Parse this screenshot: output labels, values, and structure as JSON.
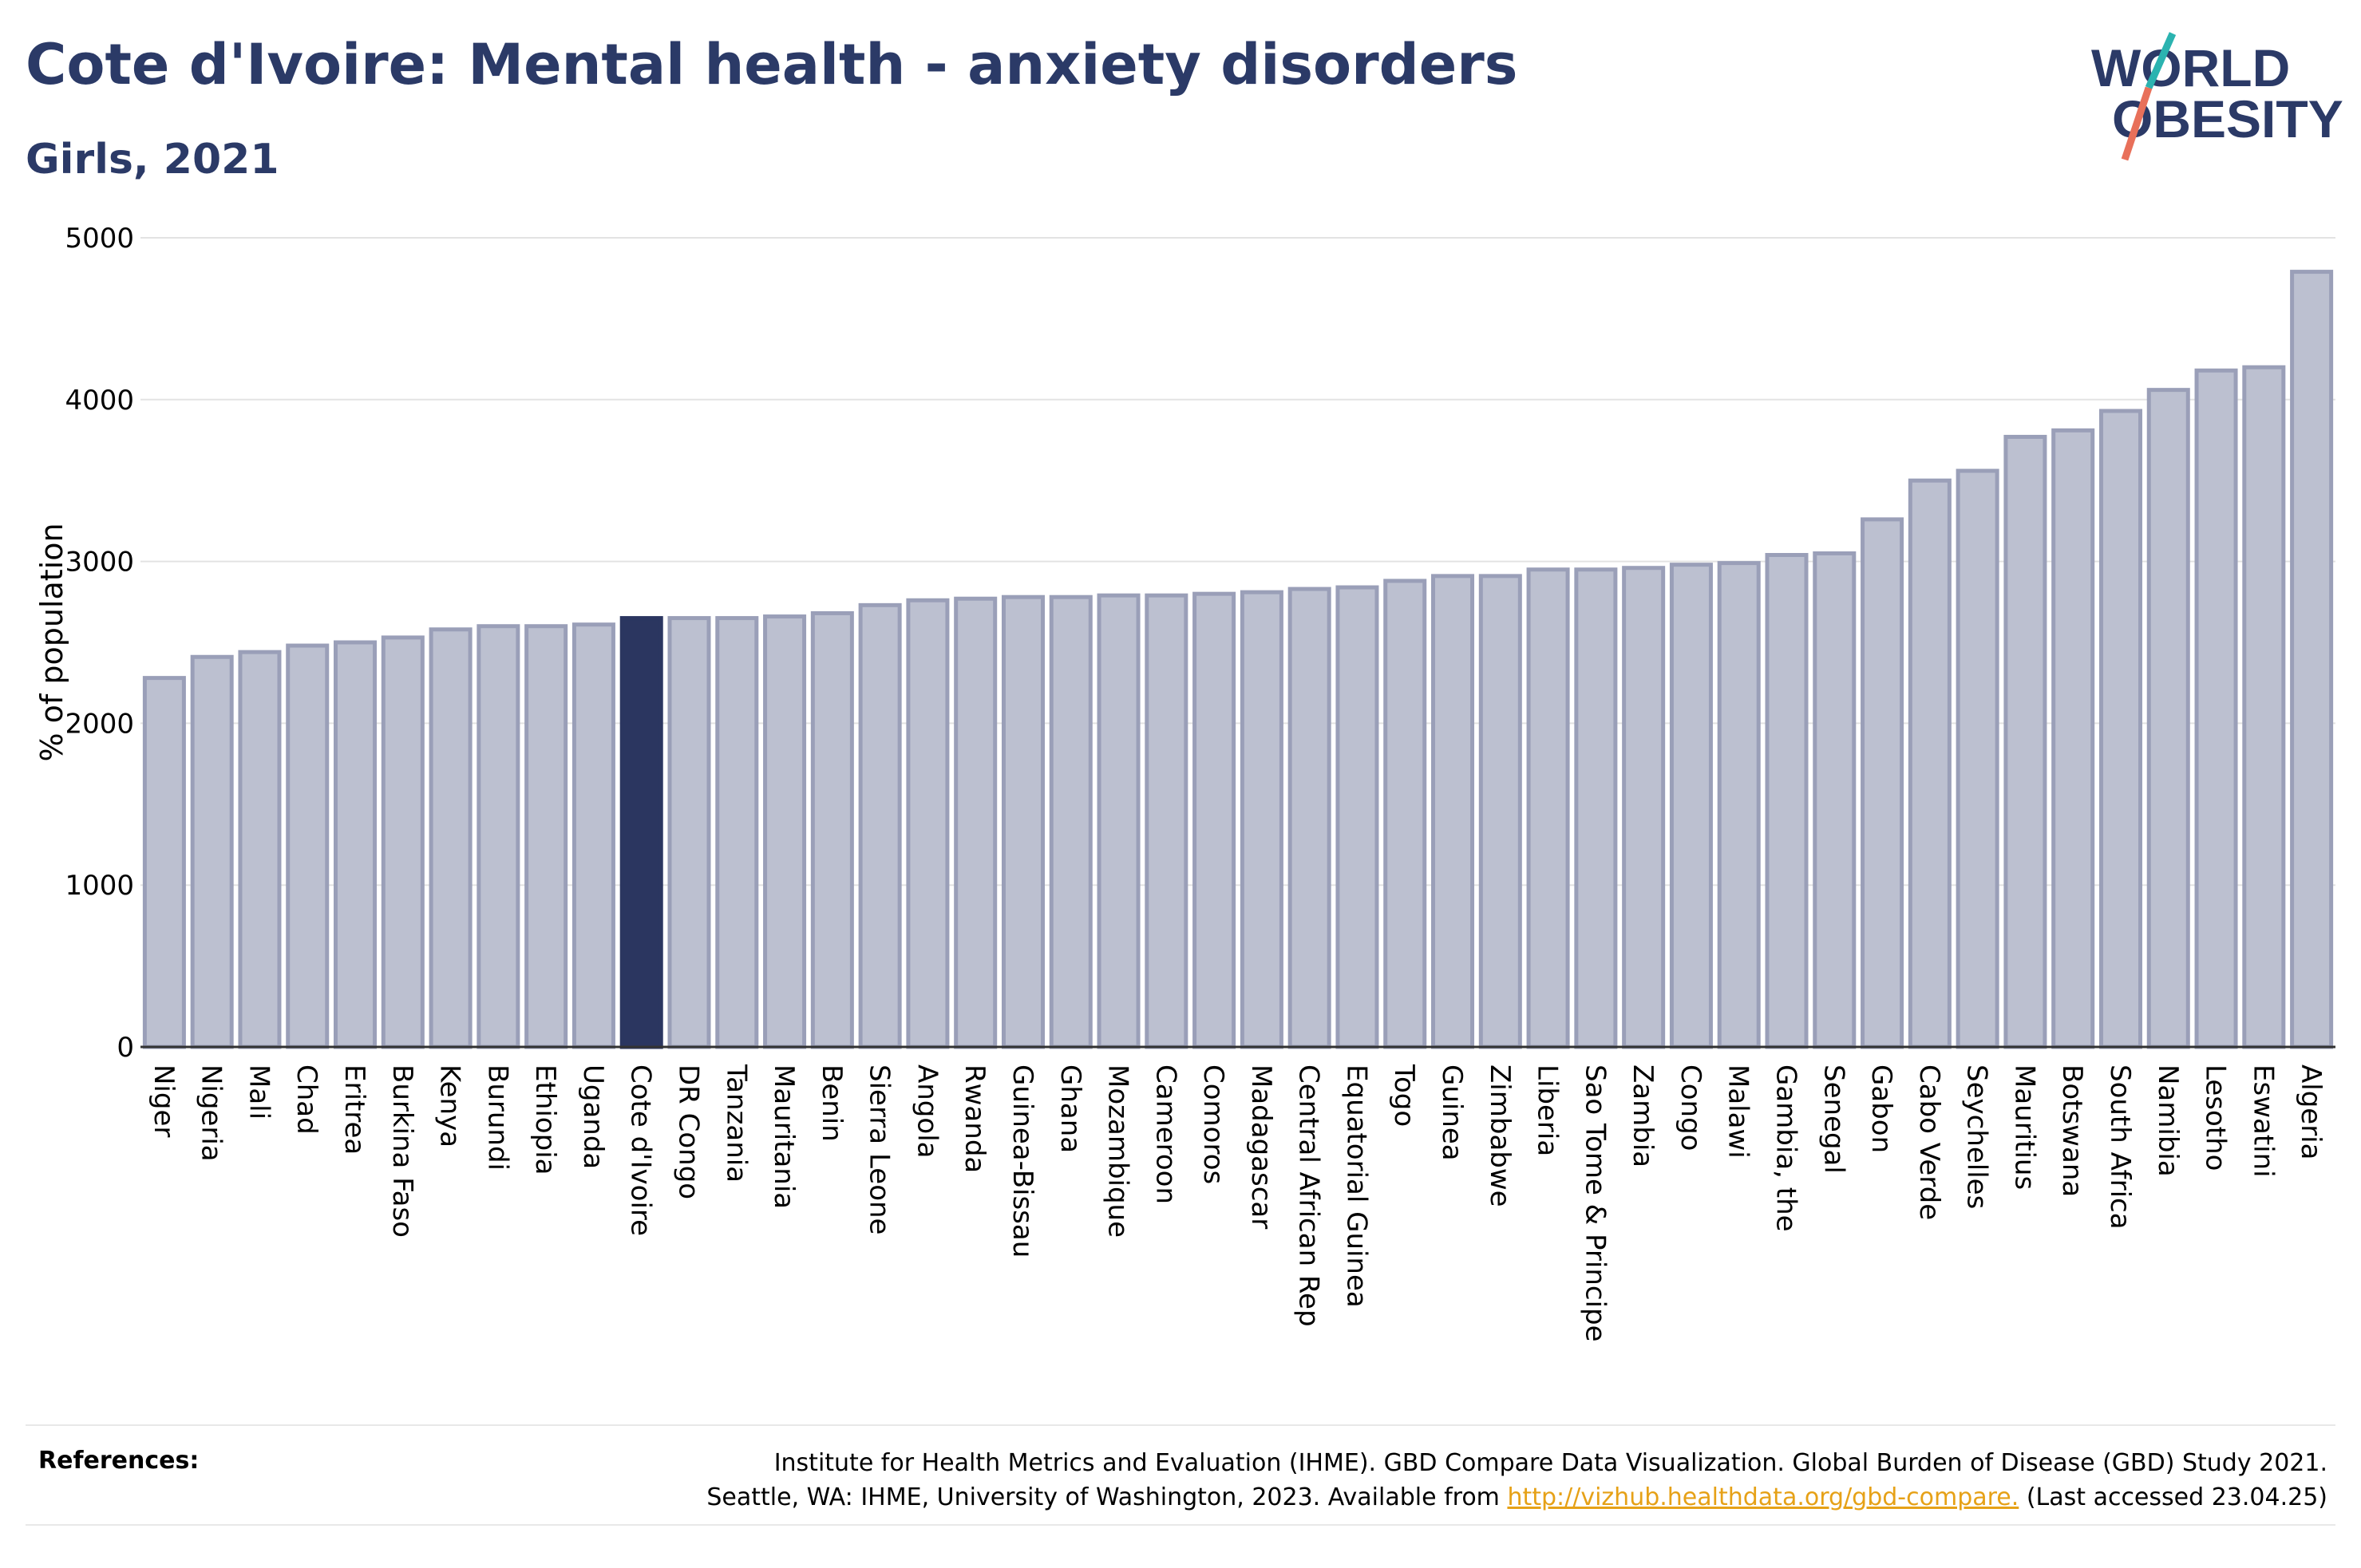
{
  "header": {
    "title": "Cote d'Ivoire: Mental health - anxiety disorders",
    "subtitle": "Girls, 2021"
  },
  "logo": {
    "line1": "WORLD",
    "line2": "OBESITY"
  },
  "chart_data": {
    "type": "bar",
    "ylabel": "% of population",
    "ylim": [
      0,
      5000
    ],
    "yticks": [
      0,
      1000,
      2000,
      3000,
      4000,
      5000
    ],
    "grid": true,
    "highlight": "Cote d'Ivoire",
    "colors": {
      "bar": "#bcc0d0",
      "bar_edge": "#9a9fb8",
      "highlight": "#2b3660",
      "grid": "#e3e3e3",
      "axis": "#333333"
    },
    "categories": [
      "Niger",
      "Nigeria",
      "Mali",
      "Chad",
      "Eritrea",
      "Burkina Faso",
      "Kenya",
      "Burundi",
      "Ethiopia",
      "Uganda",
      "Cote d'Ivoire",
      "DR Congo",
      "Tanzania",
      "Mauritania",
      "Benin",
      "Sierra Leone",
      "Angola",
      "Rwanda",
      "Guinea-Bissau",
      "Ghana",
      "Mozambique",
      "Cameroon",
      "Comoros",
      "Madagascar",
      "Central African Rep",
      "Equatorial Guinea",
      "Togo",
      "Guinea",
      "Zimbabwe",
      "Liberia",
      "Sao Tome & Principe",
      "Zambia",
      "Congo",
      "Malawi",
      "Gambia, the",
      "Senegal",
      "Gabon",
      "Cabo Verde",
      "Seychelles",
      "Mauritius",
      "Botswana",
      "South Africa",
      "Namibia",
      "Lesotho",
      "Eswatini",
      "Algeria"
    ],
    "values": [
      2280,
      2410,
      2440,
      2480,
      2500,
      2530,
      2580,
      2600,
      2600,
      2610,
      2650,
      2650,
      2650,
      2660,
      2680,
      2730,
      2760,
      2770,
      2780,
      2780,
      2790,
      2790,
      2800,
      2810,
      2830,
      2840,
      2880,
      2910,
      2910,
      2950,
      2950,
      2960,
      2980,
      2990,
      3040,
      3050,
      3260,
      3500,
      3560,
      3770,
      3810,
      3930,
      4060,
      4180,
      4200,
      4790
    ]
  },
  "references": {
    "label": "References:",
    "line1": "Institute for Health Metrics and Evaluation (IHME). GBD Compare Data Visualization. Global Burden of Disease (GBD) Study 2021.",
    "line2_prefix": "Seattle, WA: IHME, University of Washington, 2023. Available from ",
    "link": "http://vizhub.healthdata.org/gbd-compare.",
    "line2_suffix": " (Last accessed 23.04.25)"
  }
}
